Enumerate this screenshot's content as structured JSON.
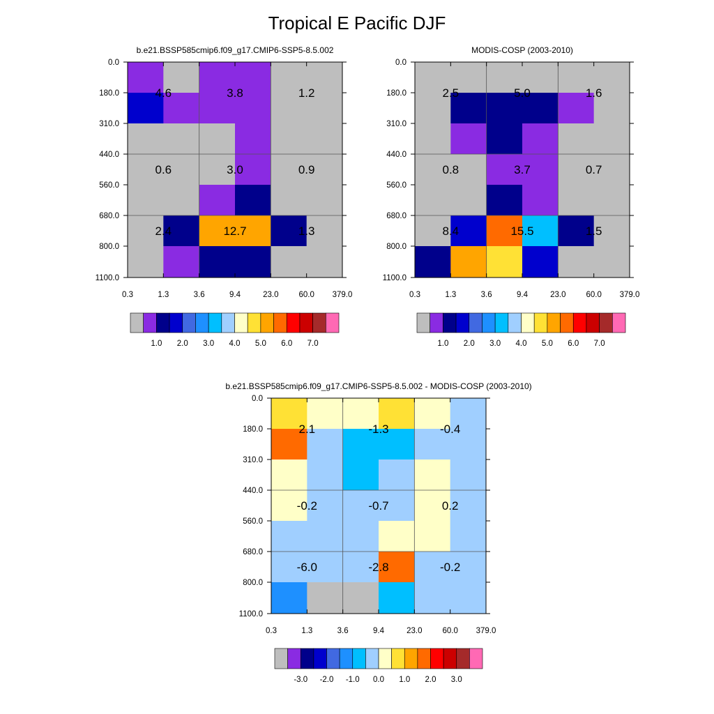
{
  "page": {
    "title": "Tropical E Pacific DJF"
  },
  "palette_full": [
    "#bebebe",
    "#8a2be2",
    "#00008b",
    "#0000cd",
    "#4169e1",
    "#1e90ff",
    "#00bfff",
    "#a0cfff",
    "#ffffc8",
    "#ffe135",
    "#ffa500",
    "#ff6a00",
    "#ff0000",
    "#cc0000",
    "#a52a2a",
    "#ff69b4"
  ],
  "palette_diff": [
    "#bebebe",
    "#8a2be2",
    "#00008b",
    "#0000cd",
    "#4169e1",
    "#1e90ff",
    "#00bfff",
    "#a0cfff",
    "#ffffc8",
    "#ffe135",
    "#ffa500",
    "#ff6a00",
    "#ff0000",
    "#cc0000",
    "#a52a2a",
    "#ff69b4"
  ],
  "chart_data": [
    {
      "type": "heatmap",
      "id": "model",
      "title": "b.e21.BSSP585cmip6.f09_g17.CMIP6-SSP5-8.5.002",
      "x_ticks": [
        "0.3",
        "1.3",
        "3.6",
        "9.4",
        "23.0",
        "60.0",
        "379.0"
      ],
      "y_ticks": [
        "0.0",
        "180.0",
        "310.0",
        "440.0",
        "560.0",
        "680.0",
        "800.0",
        "1100.0"
      ],
      "cells": [
        [
          1,
          0,
          1,
          1,
          0,
          0
        ],
        [
          3,
          1,
          1,
          1,
          0,
          0
        ],
        [
          0,
          0,
          0,
          1,
          0,
          0
        ],
        [
          0,
          0,
          0,
          1,
          0,
          0
        ],
        [
          0,
          0,
          1,
          2,
          0,
          0
        ],
        [
          0,
          2,
          10,
          10,
          2,
          0
        ],
        [
          0,
          1,
          2,
          2,
          0,
          0
        ]
      ],
      "labels": [
        {
          "text": "4.6",
          "col": 0.5,
          "row": 1
        },
        {
          "text": "3.8",
          "col": 2.5,
          "row": 1
        },
        {
          "text": "1.2",
          "col": 4.5,
          "row": 1
        },
        {
          "text": "0.6",
          "col": 0.5,
          "row": 3.5
        },
        {
          "text": "3.0",
          "col": 2.5,
          "row": 3.5
        },
        {
          "text": "0.9",
          "col": 4.5,
          "row": 3.5
        },
        {
          "text": "2.4",
          "col": 0.5,
          "row": 5.5
        },
        {
          "text": "12.7",
          "col": 2.5,
          "row": 5.5
        },
        {
          "text": "1.3",
          "col": 4.5,
          "row": 5.5
        }
      ],
      "colorbar": {
        "labels": [
          "1.0",
          "2.0",
          "3.0",
          "4.0",
          "5.0",
          "6.0",
          "7.0"
        ]
      }
    },
    {
      "type": "heatmap",
      "id": "obs",
      "title": "MODIS-COSP (2003-2010)",
      "x_ticks": [
        "0.3",
        "1.3",
        "3.6",
        "9.4",
        "23.0",
        "60.0",
        "379.0"
      ],
      "y_ticks": [
        "0.0",
        "180.0",
        "310.0",
        "440.0",
        "560.0",
        "680.0",
        "800.0",
        "1100.0"
      ],
      "cells": [
        [
          0,
          0,
          0,
          0,
          0,
          0
        ],
        [
          0,
          2,
          2,
          2,
          1,
          0
        ],
        [
          0,
          1,
          2,
          1,
          0,
          0
        ],
        [
          0,
          0,
          1,
          1,
          0,
          0
        ],
        [
          0,
          0,
          2,
          1,
          0,
          0
        ],
        [
          0,
          3,
          11,
          6,
          2,
          0
        ],
        [
          2,
          10,
          9,
          3,
          0,
          0
        ]
      ],
      "labels": [
        {
          "text": "2.5",
          "col": 0.5,
          "row": 1
        },
        {
          "text": "5.0",
          "col": 2.5,
          "row": 1
        },
        {
          "text": "1.6",
          "col": 4.5,
          "row": 1
        },
        {
          "text": "0.8",
          "col": 0.5,
          "row": 3.5
        },
        {
          "text": "3.7",
          "col": 2.5,
          "row": 3.5
        },
        {
          "text": "0.7",
          "col": 4.5,
          "row": 3.5
        },
        {
          "text": "8.4",
          "col": 0.5,
          "row": 5.5
        },
        {
          "text": "15.5",
          "col": 2.5,
          "row": 5.5
        },
        {
          "text": "1.5",
          "col": 4.5,
          "row": 5.5
        }
      ],
      "colorbar": {
        "labels": [
          "1.0",
          "2.0",
          "3.0",
          "4.0",
          "5.0",
          "6.0",
          "7.0"
        ]
      }
    },
    {
      "type": "heatmap",
      "id": "diff",
      "title": "b.e21.BSSP585cmip6.f09_g17.CMIP6-SSP5-8.5.002 - MODIS-COSP (2003-2010)",
      "x_ticks": [
        "0.3",
        "1.3",
        "3.6",
        "9.4",
        "23.0",
        "60.0",
        "379.0"
      ],
      "y_ticks": [
        "0.0",
        "180.0",
        "310.0",
        "440.0",
        "560.0",
        "680.0",
        "800.0",
        "1100.0"
      ],
      "cells": [
        [
          9,
          8,
          8,
          9,
          8,
          7
        ],
        [
          11,
          7,
          6,
          6,
          7,
          7
        ],
        [
          8,
          7,
          6,
          7,
          8,
          7
        ],
        [
          8,
          7,
          7,
          7,
          8,
          7
        ],
        [
          7,
          7,
          7,
          8,
          8,
          7
        ],
        [
          7,
          7,
          7,
          11,
          7,
          7
        ],
        [
          5,
          0,
          0,
          6,
          7,
          7
        ]
      ],
      "labels": [
        {
          "text": "2.1",
          "col": 0.5,
          "row": 1
        },
        {
          "text": "-1.3",
          "col": 2.5,
          "row": 1
        },
        {
          "text": "-0.4",
          "col": 4.5,
          "row": 1
        },
        {
          "text": "-0.2",
          "col": 0.5,
          "row": 3.5
        },
        {
          "text": "-0.7",
          "col": 2.5,
          "row": 3.5
        },
        {
          "text": "0.2",
          "col": 4.5,
          "row": 3.5
        },
        {
          "text": "-6.0",
          "col": 0.5,
          "row": 5.5
        },
        {
          "text": "-2.8",
          "col": 2.5,
          "row": 5.5
        },
        {
          "text": "-0.2",
          "col": 4.5,
          "row": 5.5
        }
      ],
      "colorbar": {
        "labels": [
          "-3.0",
          "-2.0",
          "-1.0",
          "0.0",
          "1.0",
          "2.0",
          "3.0"
        ]
      }
    }
  ]
}
